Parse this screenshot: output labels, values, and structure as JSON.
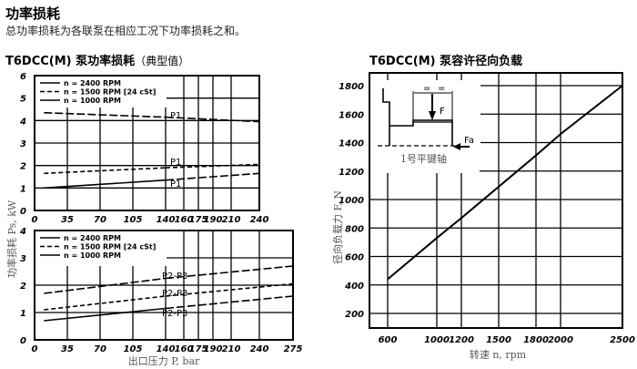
{
  "header": {
    "title": "功率损耗",
    "description": "总功率损耗为各联泵在相应工况下功率损耗之和。"
  },
  "left_panel": {
    "title_main": "T6DCC(M) 泵功率损耗",
    "title_sub": "（典型值）",
    "ylabel": "功率损耗 Ps, kW",
    "xlabel": "出口压力 P, bar"
  },
  "right_panel": {
    "title": "T6DCC(M) 泵容许径向负载",
    "ylabel": "径向负载力 F, N",
    "xlabel": "转速 n, rpm",
    "inset": {
      "force_label": "F",
      "axial_label": "Fa",
      "shaft_label": "1号平键轴",
      "dim_label": "="
    }
  },
  "chart_data": [
    {
      "id": "p1-power-loss",
      "type": "line",
      "title": "T6DCC(M) 泵功率损耗 (P1)",
      "xlabel": "出口压力 P, bar",
      "ylabel": "功率损耗 Ps, kW",
      "xticks": [
        "0",
        "35",
        "70",
        "105",
        "140",
        "160",
        "175",
        "190",
        "210",
        "240"
      ],
      "yticks": [
        "0",
        "1",
        "2",
        "3",
        "4",
        "5",
        "6"
      ],
      "ylim": [
        0,
        6
      ],
      "grid": true,
      "legend": [
        "n = 2400 RPM",
        "n = 1500 RPM [24 cSt]",
        "n = 1000 RPM"
      ],
      "legend_position": "top-left",
      "series": [
        {
          "name": "n = 2400 RPM",
          "label": "P1",
          "style": "long-dash",
          "points": [
            [
              10,
              4.35
            ],
            [
              140,
              4.15
            ],
            [
              240,
              3.95
            ]
          ]
        },
        {
          "name": "n = 1500 RPM [24 cSt]",
          "label": "P1",
          "style": "short-dash",
          "points": [
            [
              10,
              1.65
            ],
            [
              140,
              1.9
            ],
            [
              240,
              2.05
            ]
          ]
        },
        {
          "name": "n = 1000 RPM",
          "label": "P1",
          "style": "solid-then-dash",
          "points": [
            [
              10,
              1.0
            ],
            [
              140,
              1.35
            ],
            [
              240,
              1.65
            ]
          ]
        }
      ]
    },
    {
      "id": "p2p3-power-loss",
      "type": "line",
      "title": "T6DCC(M) 泵功率损耗 (P2-P3)",
      "xlabel": "出口压力 P, bar",
      "ylabel": "功率损耗 Ps, kW",
      "xticks": [
        "0",
        "35",
        "70",
        "105",
        "140",
        "160",
        "175",
        "190",
        "210",
        "240",
        "275"
      ],
      "yticks": [
        "0",
        "1",
        "2",
        "3",
        "4"
      ],
      "ylim": [
        0,
        4
      ],
      "grid": true,
      "legend": [
        "n = 2400 RPM",
        "n = 1500 RPM [24 cSt]",
        "n = 1000 RPM"
      ],
      "legend_position": "top-left",
      "series": [
        {
          "name": "n = 2400 RPM",
          "label": "P2-P3",
          "style": "long-dash",
          "points": [
            [
              10,
              1.7
            ],
            [
              140,
              2.25
            ],
            [
              275,
              2.7
            ]
          ]
        },
        {
          "name": "n = 1500 RPM [24 cSt]",
          "label": "P2-P3",
          "style": "short-dash",
          "points": [
            [
              10,
              1.1
            ],
            [
              140,
              1.6
            ],
            [
              275,
              2.05
            ]
          ]
        },
        {
          "name": "n = 1000 RPM",
          "label": "P2-P3",
          "style": "solid-then-dash",
          "points": [
            [
              10,
              0.7
            ],
            [
              140,
              1.15
            ],
            [
              275,
              1.6
            ]
          ]
        }
      ]
    },
    {
      "id": "radial-load",
      "type": "line",
      "title": "T6DCC(M) 泵容许径向负载",
      "xlabel": "转速 n, rpm",
      "ylabel": "径向负载力 F, N",
      "xticks": [
        "600",
        "1000",
        "1200",
        "1500",
        "1800",
        "2000",
        "2500"
      ],
      "yticks": [
        "200",
        "400",
        "600",
        "800",
        "1000",
        "1200",
        "1400",
        "1600",
        "1800"
      ],
      "ylim": [
        100,
        1900
      ],
      "grid": true,
      "series": [
        {
          "name": "F",
          "points": [
            [
              600,
              440
            ],
            [
              1000,
              730
            ],
            [
              1200,
              870
            ],
            [
              1500,
              1090
            ],
            [
              1800,
              1310
            ],
            [
              2000,
              1460
            ],
            [
              2500,
              1800
            ]
          ]
        }
      ]
    }
  ]
}
